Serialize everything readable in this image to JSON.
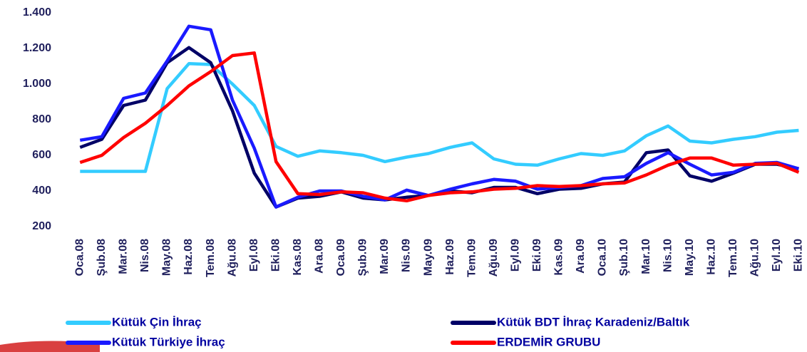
{
  "chart_data": {
    "type": "line",
    "categories": [
      "Oca.08",
      "Şub.08",
      "Mar.08",
      "Nis.08",
      "May.08",
      "Haz.08",
      "Tem.08",
      "Ağu.08",
      "Eyl.08",
      "Eki.08",
      "Kas.08",
      "Ara.08",
      "Oca.09",
      "Şub.09",
      "Mar.09",
      "Nis.09",
      "May.09",
      "Haz.09",
      "Tem.09",
      "Ağu.09",
      "Eyl.09",
      "Eki.09",
      "Kas.09",
      "Ara.09",
      "Oca.10",
      "Şub.10",
      "Mar.10",
      "Nis.10",
      "May.10",
      "Haz.10",
      "Tem.10",
      "Ağu.10",
      "Eyl.10",
      "Eki.10"
    ],
    "series": [
      {
        "name": "Kütük Çin İhraç",
        "color": "#33ccff",
        "values": [
          510,
          510,
          510,
          510,
          975,
          1115,
          1110,
          1000,
          880,
          650,
          595,
          625,
          615,
          600,
          565,
          590,
          610,
          645,
          670,
          580,
          550,
          545,
          580,
          610,
          600,
          625,
          710,
          765,
          680,
          670,
          690,
          705,
          730,
          740
        ]
      },
      {
        "name": "Kütük BDT İhraç Karadeniz/Baltık",
        "color": "#000066",
        "values": [
          645,
          690,
          880,
          910,
          1120,
          1205,
          1120,
          850,
          500,
          310,
          360,
          370,
          395,
          360,
          350,
          365,
          375,
          400,
          390,
          420,
          420,
          385,
          410,
          415,
          440,
          450,
          615,
          630,
          485,
          455,
          500,
          550,
          550,
          525
        ]
      },
      {
        "name": "Kütük Türkiye İhraç",
        "color": "#1a1aff",
        "values": [
          685,
          705,
          920,
          950,
          1130,
          1325,
          1305,
          910,
          640,
          310,
          365,
          400,
          400,
          370,
          350,
          405,
          375,
          410,
          440,
          465,
          455,
          410,
          420,
          430,
          470,
          480,
          555,
          615,
          550,
          490,
          505,
          555,
          560,
          525
        ]
      },
      {
        "name": "ERDEMİR GRUBU",
        "color": "#ff0000",
        "values": [
          560,
          600,
          700,
          780,
          880,
          990,
          1070,
          1160,
          1175,
          565,
          385,
          380,
          395,
          390,
          360,
          345,
          375,
          390,
          395,
          410,
          415,
          430,
          425,
          430,
          440,
          445,
          490,
          545,
          585,
          585,
          545,
          550,
          555,
          505
        ]
      }
    ],
    "ylim": [
      200,
      1400
    ],
    "yticks": [
      {
        "value": 1400,
        "label": "1.400"
      },
      {
        "value": 1200,
        "label": "1.200"
      },
      {
        "value": 1000,
        "label": "1.000"
      },
      800,
      600,
      400,
      200
    ]
  }
}
